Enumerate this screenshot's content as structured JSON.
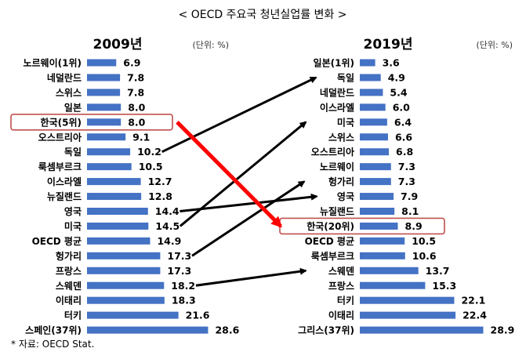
{
  "title": "< OECD 주요국 청년실업률 변화 >",
  "unit_label": "(단위: %)",
  "source": "* 자료: OECD Stat.",
  "colors": {
    "bar": "#4472C4",
    "arrow": "#000000",
    "highlight_arrow": "#FF0000",
    "highlight_box": "#C0504D"
  },
  "chart_data": [
    {
      "type": "bar",
      "orientation": "horizontal",
      "title": "2009년",
      "unit": "(단위: %)",
      "categories": [
        "노르웨이(1위)",
        "네덜란드",
        "스위스",
        "일본",
        "한국(5위)",
        "오스트리아",
        "독일",
        "룩셈부르크",
        "이스라엘",
        "뉴질랜드",
        "영국",
        "미국",
        "OECD 평균",
        "헝가리",
        "프랑스",
        "스웨덴",
        "이태리",
        "터키",
        "스페인(37위)"
      ],
      "values": [
        6.9,
        7.8,
        7.8,
        8.0,
        8.0,
        9.1,
        10.2,
        10.5,
        12.7,
        12.8,
        14.4,
        14.5,
        14.9,
        17.3,
        17.3,
        18.2,
        18.3,
        21.6,
        28.6
      ],
      "value_labels": [
        "6.9",
        "7.8",
        "7.8",
        "8.0",
        "8.0",
        "9.1",
        "10.2",
        "10.5",
        "12.7",
        "12.8",
        "14.4",
        "14.5",
        "14.9",
        "17.3",
        "17.3",
        "18.2",
        "18.3",
        "21.6",
        "28.6"
      ],
      "highlight": "한국(5위)"
    },
    {
      "type": "bar",
      "orientation": "horizontal",
      "title": "2019년",
      "unit": "(단위: %)",
      "categories": [
        "일본(1위)",
        "독일",
        "네덜란드",
        "이스라엘",
        "미국",
        "스위스",
        "오스트리아",
        "노르웨이",
        "헝가리",
        "영국",
        "뉴질랜드",
        "한국(20위)",
        "OECD 평균",
        "룩셈부르크",
        "스웨덴",
        "프랑스",
        "터키",
        "이태리",
        "그리스(37위)"
      ],
      "values": [
        3.6,
        4.9,
        5.4,
        6.0,
        6.4,
        6.6,
        6.8,
        7.3,
        7.3,
        7.9,
        8.1,
        8.9,
        10.5,
        10.6,
        13.7,
        15.3,
        22.1,
        22.4,
        28.9
      ],
      "value_labels": [
        "3.6",
        "4.9",
        "5.4",
        "6.0",
        "6.4",
        "6.6",
        "6.8",
        "7.3",
        "7.3",
        "7.9",
        "8.1",
        "8.9",
        "10.5",
        "10.6",
        "13.7",
        "15.3",
        "22.1",
        "22.4",
        "28.9"
      ],
      "highlight": "한국(20위)"
    }
  ],
  "arrows": [
    {
      "from": "독일",
      "to": "독일",
      "color": "black"
    },
    {
      "from": "영국",
      "to": "영국",
      "color": "black"
    },
    {
      "from": "미국",
      "to": "미국",
      "color": "black"
    },
    {
      "from": "헝가리",
      "to": "헝가리",
      "color": "black"
    },
    {
      "from": "스웨덴",
      "to": "스웨덴",
      "color": "black"
    },
    {
      "from": "한국(5위)",
      "to": "한국(20위)",
      "color": "red"
    }
  ]
}
